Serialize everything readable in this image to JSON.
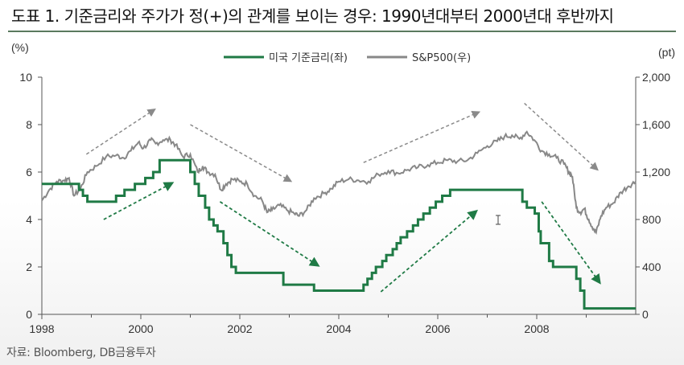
{
  "header": {
    "title": "도표 1. 기준금리와 주가가 정(+)의 관계를 보이는 경우: 1990년대부터 2000년대 후반까지"
  },
  "footer": {
    "source": "자료: Bloomberg, DB금융투자"
  },
  "colors": {
    "rate": "#1f7a45",
    "sp500": "#888888",
    "arrow_gray": "#8a8a8a",
    "arrow_green": "#1f7a45"
  },
  "chart_data": {
    "type": "line",
    "x_range": [
      1998,
      2010
    ],
    "x_ticks": [
      "1998",
      "2000",
      "2002",
      "2004",
      "2006",
      "2008"
    ],
    "left_axis": {
      "label": "(%)",
      "range": [
        0,
        10
      ],
      "ticks": [
        "0",
        "2",
        "4",
        "6",
        "8",
        "10"
      ]
    },
    "right_axis": {
      "label": "(pt)",
      "range": [
        0,
        2000
      ],
      "ticks": [
        "0",
        "400",
        "800",
        "1,200",
        "1,600",
        "2,000"
      ]
    },
    "grid": false,
    "legend_position": "top",
    "series": [
      {
        "name": "미국 기준금리(좌)",
        "axis": "left",
        "step": true,
        "x": [
          1998.0,
          1998.75,
          1998.83,
          1998.92,
          1999.5,
          1999.67,
          1999.88,
          2000.09,
          2000.25,
          2000.38,
          2001.0,
          2001.09,
          2001.17,
          2001.3,
          2001.38,
          2001.47,
          2001.55,
          2001.67,
          2001.75,
          2001.83,
          2001.92,
          2002.0,
          2002.88,
          2003.5,
          2004.5,
          2004.58,
          2004.67,
          2004.75,
          2004.88,
          2004.96,
          2005.09,
          2005.17,
          2005.25,
          2005.38,
          2005.5,
          2005.6,
          2005.71,
          2005.84,
          2005.96,
          2006.09,
          2006.25,
          2006.38,
          2006.5,
          2007.71,
          2007.8,
          2007.96,
          2008.04,
          2008.08,
          2008.25,
          2008.33,
          2008.8,
          2008.88,
          2008.96,
          2010.0
        ],
        "values": [
          5.5,
          5.25,
          5.0,
          4.75,
          5.0,
          5.25,
          5.5,
          5.75,
          6.0,
          6.5,
          6.0,
          5.5,
          5.0,
          4.5,
          4.0,
          3.75,
          3.5,
          3.0,
          2.5,
          2.0,
          1.75,
          1.75,
          1.25,
          1.0,
          1.25,
          1.5,
          1.75,
          2.0,
          2.25,
          2.5,
          2.75,
          3.0,
          3.25,
          3.5,
          3.75,
          4.0,
          4.25,
          4.5,
          4.75,
          5.0,
          5.25,
          5.25,
          5.25,
          4.75,
          4.5,
          4.25,
          3.5,
          3.0,
          2.25,
          2.0,
          1.5,
          1.0,
          0.25,
          0.25
        ]
      },
      {
        "name": "S&P500(우)",
        "axis": "right",
        "x": [
          1998.0,
          1998.15,
          1998.3,
          1998.45,
          1998.55,
          1998.65,
          1998.78,
          1998.92,
          1999.1,
          1999.3,
          1999.5,
          1999.65,
          1999.8,
          1999.95,
          2000.05,
          2000.2,
          2000.3,
          2000.45,
          2000.6,
          2000.7,
          2000.85,
          2001.0,
          2001.15,
          2001.25,
          2001.35,
          2001.5,
          2001.62,
          2001.72,
          2001.85,
          2002.0,
          2002.15,
          2002.3,
          2002.45,
          2002.55,
          2002.65,
          2002.8,
          2002.95,
          2003.1,
          2003.2,
          2003.35,
          2003.5,
          2003.7,
          2003.85,
          2004.0,
          2004.2,
          2004.4,
          2004.6,
          2004.8,
          2005.0,
          2005.2,
          2005.4,
          2005.6,
          2005.8,
          2006.0,
          2006.2,
          2006.4,
          2006.6,
          2006.8,
          2007.0,
          2007.2,
          2007.35,
          2007.5,
          2007.65,
          2007.8,
          2007.95,
          2008.1,
          2008.25,
          2008.4,
          2008.55,
          2008.65,
          2008.72,
          2008.8,
          2008.88,
          2008.96,
          2009.05,
          2009.15,
          2009.2,
          2009.3,
          2009.4,
          2009.55,
          2009.7,
          2009.85,
          2010.0
        ],
        "values": [
          960,
          1050,
          1120,
          1130,
          1150,
          1000,
          1060,
          1200,
          1250,
          1330,
          1340,
          1320,
          1380,
          1450,
          1400,
          1470,
          1440,
          1470,
          1470,
          1430,
          1330,
          1350,
          1200,
          1250,
          1200,
          1180,
          1050,
          1100,
          1140,
          1120,
          1100,
          1000,
          960,
          860,
          880,
          920,
          880,
          850,
          830,
          880,
          980,
          1020,
          1060,
          1120,
          1140,
          1130,
          1120,
          1180,
          1210,
          1190,
          1220,
          1240,
          1260,
          1280,
          1300,
          1290,
          1300,
          1360,
          1420,
          1460,
          1500,
          1510,
          1480,
          1540,
          1470,
          1380,
          1350,
          1320,
          1270,
          1200,
          1160,
          900,
          860,
          890,
          800,
          720,
          690,
          830,
          900,
          940,
          1030,
          1080,
          1120
        ]
      }
    ],
    "trend_arrows": [
      {
        "color": "gray",
        "from": [
          1998.9,
          1350
        ],
        "to": [
          2000.25,
          1720
        ]
      },
      {
        "color": "green",
        "from": [
          1999.25,
          4.0
        ],
        "to": [
          2000.6,
          5.5
        ]
      },
      {
        "color": "gray",
        "from": [
          2001.0,
          1600
        ],
        "to": [
          2003.0,
          1130
        ]
      },
      {
        "color": "green",
        "from": [
          2001.6,
          4.75
        ],
        "to": [
          2003.55,
          2.1
        ]
      },
      {
        "color": "gray",
        "from": [
          2004.5,
          1280
        ],
        "to": [
          2006.8,
          1700
        ]
      },
      {
        "color": "green",
        "from": [
          2004.85,
          0.95
        ],
        "to": [
          2006.75,
          4.3
        ]
      },
      {
        "color": "gray",
        "from": [
          2007.75,
          1780
        ],
        "to": [
          2009.2,
          1230
        ]
      },
      {
        "color": "green",
        "from": [
          2008.1,
          4.75
        ],
        "to": [
          2009.25,
          1.4
        ]
      }
    ]
  }
}
